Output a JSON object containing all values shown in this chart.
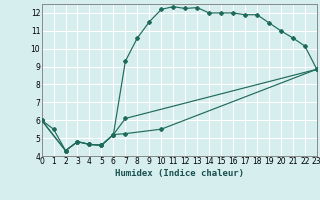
{
  "xlabel": "Humidex (Indice chaleur)",
  "bg_color": "#d6eeee",
  "grid_color": "#ffffff",
  "line_color": "#1f6b5a",
  "xlim": [
    0,
    23
  ],
  "ylim": [
    4,
    12.5
  ],
  "yticks": [
    4,
    5,
    6,
    7,
    8,
    9,
    10,
    11,
    12
  ],
  "xticks": [
    0,
    1,
    2,
    3,
    4,
    5,
    6,
    7,
    8,
    9,
    10,
    11,
    12,
    13,
    14,
    15,
    16,
    17,
    18,
    19,
    20,
    21,
    22,
    23
  ],
  "curve1_x": [
    0,
    1,
    2,
    3,
    4,
    5,
    6,
    7,
    8,
    9,
    10,
    11,
    12,
    13,
    14,
    15,
    16,
    17,
    18,
    19,
    20,
    21,
    22,
    23
  ],
  "curve1_y": [
    6.0,
    5.5,
    4.3,
    4.8,
    4.65,
    4.6,
    5.2,
    9.3,
    10.6,
    11.5,
    12.2,
    12.35,
    12.25,
    12.3,
    12.0,
    12.0,
    12.0,
    11.9,
    11.9,
    11.45,
    11.0,
    10.6,
    10.15,
    8.85
  ],
  "curve2_x": [
    0,
    2,
    3,
    4,
    5,
    6,
    7,
    23
  ],
  "curve2_y": [
    6.0,
    4.3,
    4.8,
    4.65,
    4.6,
    5.2,
    6.1,
    8.85
  ],
  "curve3_x": [
    0,
    2,
    3,
    4,
    5,
    6,
    7,
    10,
    23
  ],
  "curve3_y": [
    6.0,
    4.3,
    4.8,
    4.65,
    4.6,
    5.2,
    5.25,
    5.5,
    8.85
  ]
}
